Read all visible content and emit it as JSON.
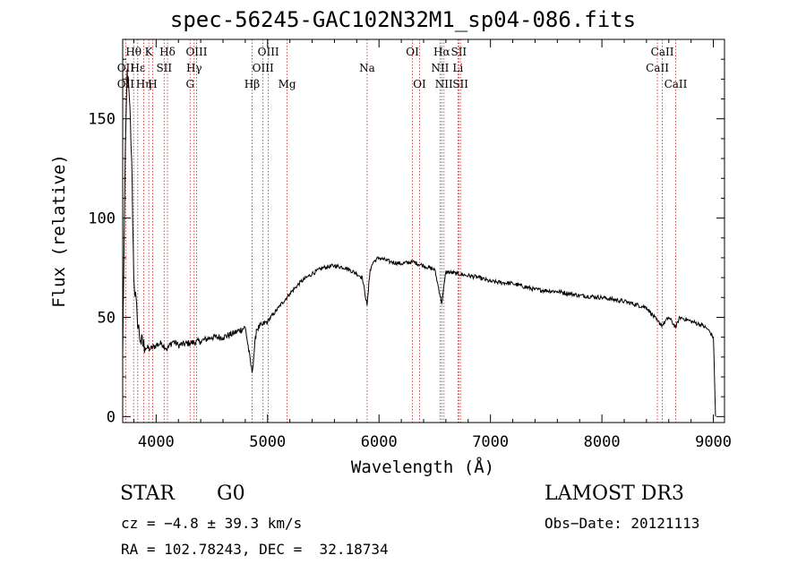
{
  "chart_data": {
    "type": "line",
    "title": "spec-56245-GAC102N32M1_sp04-086.fits",
    "xlabel": "Wavelength (Å)",
    "ylabel": "Flux (relative)",
    "xlim": [
      3700,
      9100
    ],
    "ylim": [
      -3,
      190
    ],
    "x_ticks": [
      4000,
      5000,
      6000,
      7000,
      8000,
      9000
    ],
    "y_ticks": [
      0,
      50,
      100,
      150
    ],
    "x_tick_labels": [
      "4000",
      "5000",
      "6000",
      "7000",
      "8000",
      "9000"
    ],
    "y_tick_labels": [
      "0",
      "50",
      "100",
      "150"
    ],
    "spectrum": {
      "x": [
        3700,
        3720,
        3740,
        3760,
        3780,
        3800,
        3830,
        3860,
        3900,
        3950,
        4000,
        4050,
        4100,
        4150,
        4200,
        4300,
        4400,
        4500,
        4600,
        4700,
        4800,
        4861,
        4900,
        4950,
        5000,
        5100,
        5200,
        5300,
        5400,
        5500,
        5600,
        5700,
        5800,
        5850,
        5893,
        5920,
        5950,
        6000,
        6100,
        6200,
        6300,
        6400,
        6500,
        6563,
        6600,
        6700,
        6800,
        6900,
        7000,
        7200,
        7400,
        7600,
        7800,
        8000,
        8200,
        8400,
        8498,
        8542,
        8600,
        8662,
        8700,
        8800,
        8900,
        8950,
        9000,
        9020
      ],
      "y": [
        30,
        120,
        175,
        160,
        130,
        70,
        50,
        38,
        35,
        34,
        36,
        37,
        34,
        38,
        36,
        37,
        38,
        40,
        40,
        42,
        45,
        22,
        44,
        46,
        48,
        55,
        62,
        68,
        72,
        75,
        76,
        75,
        72,
        70,
        56,
        74,
        78,
        80,
        78,
        77,
        78,
        76,
        74,
        57,
        73,
        72,
        71,
        70,
        68,
        67,
        64,
        63,
        61,
        60,
        58,
        55,
        48,
        46,
        50,
        45,
        50,
        48,
        46,
        44,
        40,
        0
      ]
    },
    "lines": [
      {
        "name": "OII",
        "wave": 3727,
        "row": 2
      },
      {
        "name": "OII",
        "wave": 3727,
        "row": 3
      },
      {
        "name": "Hθ",
        "wave": 3798,
        "row": 1
      },
      {
        "name": "Hε",
        "wave": 3835,
        "row": 2
      },
      {
        "name": "Hη",
        "wave": 3889,
        "row": 3
      },
      {
        "name": "K",
        "wave": 3934,
        "row": 1
      },
      {
        "name": "H",
        "wave": 3969,
        "row": 3
      },
      {
        "name": "SII",
        "wave": 4072,
        "row": 2
      },
      {
        "name": "Hδ",
        "wave": 4102,
        "row": 1
      },
      {
        "name": "G",
        "wave": 4305,
        "row": 3
      },
      {
        "name": "OIII",
        "wave": 4363,
        "row": 1
      },
      {
        "name": "Hγ",
        "wave": 4341,
        "row": 2
      },
      {
        "name": "Hβ",
        "wave": 4861,
        "row": 3
      },
      {
        "name": "OIII",
        "wave": 4959,
        "row": 2
      },
      {
        "name": "OIII",
        "wave": 5007,
        "row": 1
      },
      {
        "name": "Mg",
        "wave": 5175,
        "row": 3
      },
      {
        "name": "Na",
        "wave": 5893,
        "row": 2
      },
      {
        "name": "OI",
        "wave": 6300,
        "row": 1
      },
      {
        "name": "OI",
        "wave": 6364,
        "row": 3
      },
      {
        "name": "NII",
        "wave": 6548,
        "row": 2
      },
      {
        "name": "Hα",
        "wave": 6563,
        "row": 1
      },
      {
        "name": "NII",
        "wave": 6583,
        "row": 3
      },
      {
        "name": "SII",
        "wave": 6716,
        "row": 1
      },
      {
        "name": "Li",
        "wave": 6708,
        "row": 2
      },
      {
        "name": "SII",
        "wave": 6731,
        "row": 3
      },
      {
        "name": "CaII",
        "wave": 8498,
        "row": 2
      },
      {
        "name": "CaII",
        "wave": 8542,
        "row": 1
      },
      {
        "name": "CaII",
        "wave": 8662,
        "row": 3
      }
    ]
  },
  "info": {
    "object_class": "STAR",
    "subclass": "G0",
    "survey": "LAMOST DR3",
    "cz": "cz = −4.8 ± 39.3 km/s",
    "obs_date": "Obs−Date: 20121113",
    "radec": "RA = 102.78243, DEC =  32.18734"
  },
  "colors": {
    "spectrum": "#000000",
    "line_marker": "#cc2222"
  }
}
